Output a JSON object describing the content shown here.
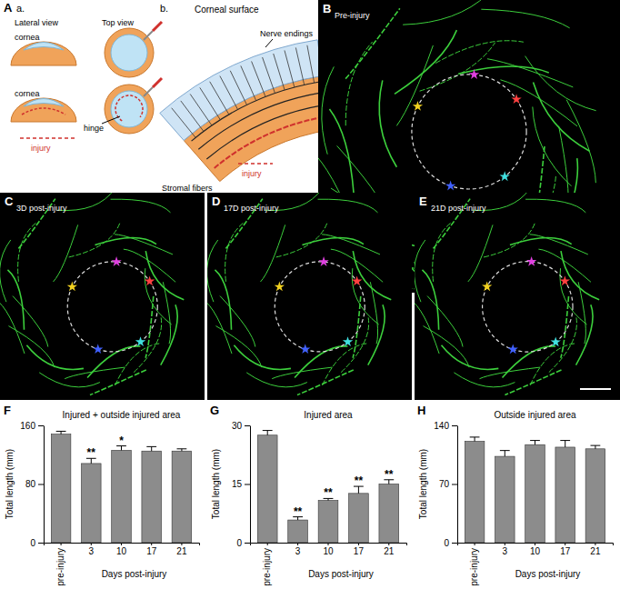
{
  "figure": {
    "schematic_a": {
      "letter": "A",
      "sub": "a.",
      "lateral": "Lateral view",
      "top": "Top view",
      "cornea": "cornea",
      "hinge": "hinge",
      "injury": "injury"
    },
    "schematic_b": {
      "sub": "b.",
      "surface": "Corneal surface",
      "nerve": "Nerve endings",
      "stromal": "Stromal fibers",
      "injury": "injury"
    },
    "images": [
      {
        "letter": "B",
        "caption": "Pre-injury"
      },
      {
        "letter": "C",
        "caption": "3D post-injury"
      },
      {
        "letter": "D",
        "caption": "17D post-injury"
      },
      {
        "letter": "E",
        "caption": "21D post-injury"
      }
    ],
    "chart_letters": [
      "F",
      "G",
      "H"
    ]
  },
  "chart_data": [
    {
      "type": "bar",
      "title": "Injured + outside injured area",
      "y_label": "Total length (mm)",
      "x_label": "Days post-injury",
      "categories": [
        "pre-injury",
        "3",
        "10",
        "17",
        "21"
      ],
      "values": [
        148,
        108,
        126,
        125,
        125
      ],
      "errors": [
        4,
        7,
        6,
        6,
        3
      ],
      "color": "#8c8c8c",
      "ylim": [
        0,
        160
      ],
      "yticks": [
        0,
        80,
        160
      ],
      "annotations": [
        {
          "text": "**",
          "category": "3"
        },
        {
          "text": "*",
          "category": "10"
        }
      ]
    },
    {
      "type": "bar",
      "title": "Injured area",
      "y_label": "Total length (mm)",
      "x_label": "Days post-injury",
      "categories": [
        "pre-injury",
        "3",
        "10",
        "17",
        "21"
      ],
      "values": [
        27.5,
        5.8,
        10.8,
        12.6,
        15
      ],
      "errors": [
        1.2,
        0.8,
        0.5,
        1.8,
        1.1
      ],
      "color": "#8c8c8c",
      "ylim": [
        0,
        30
      ],
      "yticks": [
        0,
        15,
        30
      ],
      "annotations": [
        {
          "text": "**",
          "category": "3"
        },
        {
          "text": "**",
          "category": "10"
        },
        {
          "text": "**",
          "category": "17"
        },
        {
          "text": "**",
          "category": "21"
        }
      ]
    },
    {
      "type": "bar",
      "title": "Outside injured area",
      "y_label": "Total length (mm)",
      "x_label": "Days post-injury",
      "categories": [
        "pre-injury",
        "3",
        "10",
        "17",
        "21"
      ],
      "values": [
        121,
        103,
        117,
        114,
        112
      ],
      "errors": [
        5,
        7,
        5,
        8,
        4
      ],
      "color": "#8c8c8c",
      "ylim": [
        0,
        140
      ],
      "yticks": [
        0,
        70,
        140
      ],
      "annotations": []
    }
  ]
}
